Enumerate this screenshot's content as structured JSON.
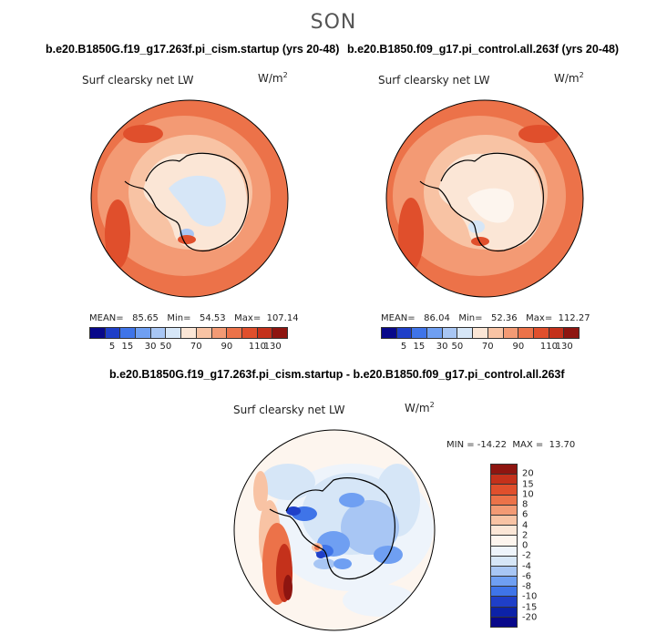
{
  "season": "SON",
  "panels": [
    {
      "title": "b.e20.B1850G.f19_g17.263f.pi_cism.startup (yrs 20-48)",
      "variable": "Surf clearsky net LW",
      "units": "W/m",
      "units_exp": "2",
      "stats": "MEAN=   85.65   Min=   54.53   Max=  107.14"
    },
    {
      "title": "b.e20.B1850.f09_g17.pi_control.all.263f (yrs 20-48)",
      "variable": "Surf clearsky net LW",
      "units": "W/m",
      "units_exp": "2",
      "stats": "MEAN=   86.04   Min=   52.36   Max=  112.27"
    }
  ],
  "colorbar_abs": {
    "colors": [
      "#08088a",
      "#1f3fc8",
      "#3f74e8",
      "#6f9ff2",
      "#a8c6f4",
      "#d6e6f7",
      "#fbe6d6",
      "#f8c3a4",
      "#f39a74",
      "#ec7249",
      "#e04f2c",
      "#c4311b",
      "#8e1510"
    ],
    "labels": [
      "5",
      "15",
      "30",
      "50",
      "70",
      "90",
      "110",
      "130"
    ]
  },
  "diff_panel": {
    "title": "b.e20.B1850G.f19_g17.263f.pi_cism.startup - b.e20.B1850.f09_g17.pi_control.all.263f",
    "variable": "Surf clearsky net LW",
    "units": "W/m",
    "units_exp": "2",
    "stats": "MIN = -14.22  MAX =  13.70"
  },
  "colorbar_diff": {
    "colors": [
      "#8e1510",
      "#c4311b",
      "#e04f2c",
      "#ec7249",
      "#f39a74",
      "#f8c3a4",
      "#fbe6d6",
      "#fdf5ee",
      "#eef4fb",
      "#d6e6f7",
      "#a8c6f4",
      "#6f9ff2",
      "#3f74e8",
      "#1f3fc8",
      "#0c22a8",
      "#08088a"
    ],
    "labels": [
      "20",
      "15",
      "10",
      "8",
      "6",
      "4",
      "2",
      "0",
      "-2",
      "-4",
      "-6",
      "-8",
      "-10",
      "-15",
      "-20"
    ]
  }
}
